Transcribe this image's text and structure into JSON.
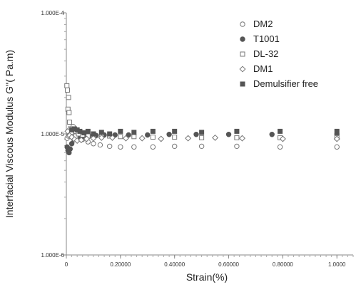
{
  "chart_data": {
    "type": "scatter",
    "xlabel": "Strain(%)",
    "ylabel": "Interfacial Viscous Modulus G''( Pa.m)",
    "xlim": [
      0,
      1.06
    ],
    "ylim": [
      1e-06,
      0.0001
    ],
    "yscale": "log",
    "x_ticks": [
      {
        "value": 0,
        "label": "0"
      },
      {
        "value": 0.2,
        "label": "0.20000"
      },
      {
        "value": 0.4,
        "label": "0.40000"
      },
      {
        "value": 0.6,
        "label": "0.60000"
      },
      {
        "value": 0.8,
        "label": "0.80000"
      },
      {
        "value": 1.0,
        "label": "1.0000"
      }
    ],
    "y_ticks": [
      {
        "value": 0.0001,
        "label": "1.000E-4"
      },
      {
        "value": 1e-05,
        "label": "1.000E-5"
      },
      {
        "value": 1e-06,
        "label": "1.000E-6"
      }
    ],
    "legend_position": "top-right",
    "series": [
      {
        "name": "DM2",
        "marker": "open-circle",
        "color": "#777777",
        "x": [
          0.003,
          0.008,
          0.013,
          0.018,
          0.025,
          0.033,
          0.045,
          0.06,
          0.08,
          0.1,
          0.125,
          0.16,
          0.2,
          0.25,
          0.32,
          0.4,
          0.5,
          0.63,
          0.79,
          1.0
        ],
        "y": [
          9.2e-06,
          9.6e-06,
          1e-05,
          1.05e-05,
          1.15e-05,
          1.05e-05,
          9.5e-06,
          9e-06,
          8.6e-06,
          8.3e-06,
          8.1e-06,
          7.9e-06,
          7.8e-06,
          7.8e-06,
          7.8e-06,
          7.9e-06,
          7.9e-06,
          7.9e-06,
          7.8e-06,
          7.8e-06
        ]
      },
      {
        "name": "T1001",
        "marker": "filled-circle",
        "color": "#555555",
        "x": [
          0.003,
          0.006,
          0.01,
          0.014,
          0.02,
          0.028,
          0.038,
          0.05,
          0.065,
          0.085,
          0.11,
          0.14,
          0.18,
          0.23,
          0.3,
          0.38,
          0.48,
          0.6,
          0.76,
          1.0
        ],
        "y": [
          7.8e-06,
          7.3e-06,
          7e-06,
          7.5e-06,
          8.3e-06,
          9e-06,
          9.2e-06,
          9.4e-06,
          9.5e-06,
          9.6e-06,
          9.7e-06,
          9.8e-06,
          9.8e-06,
          9.8e-06,
          9.8e-06,
          9.9e-06,
          9.9e-06,
          9.9e-06,
          9.9e-06,
          9.9e-06
        ]
      },
      {
        "name": "DL-32",
        "marker": "open-square",
        "color": "#777777",
        "x": [
          0.002,
          0.004,
          0.006,
          0.008,
          0.01,
          0.012,
          0.015,
          0.018,
          0.022,
          0.028,
          0.035,
          0.045,
          0.06,
          0.08,
          0.1,
          0.13,
          0.16,
          0.2,
          0.25,
          0.32,
          0.4,
          0.5,
          0.63,
          0.79,
          1.0
        ],
        "y": [
          2.5e-05,
          2.3e-05,
          1.6e-05,
          2e-05,
          1.5e-05,
          1.25e-05,
          1.1e-05,
          1e-05,
          9.5e-06,
          9.3e-06,
          9.6e-06,
          1e-05,
          9.8e-06,
          9.6e-06,
          9.5e-06,
          9.7e-06,
          9.6e-06,
          9.5e-06,
          9.5e-06,
          9.4e-06,
          9.4e-06,
          9.3e-06,
          9.3e-06,
          9.3e-06,
          9.3e-06
        ]
      },
      {
        "name": "DM1",
        "marker": "open-diamond",
        "color": "#777777",
        "x": [
          0.005,
          0.012,
          0.02,
          0.03,
          0.04,
          0.055,
          0.075,
          0.1,
          0.13,
          0.17,
          0.22,
          0.28,
          0.35,
          0.45,
          0.55,
          0.65,
          0.8,
          1.0
        ],
        "y": [
          1.05e-05,
          9.7e-06,
          9.4e-06,
          9e-06,
          8.8e-06,
          8.9e-06,
          9.1e-06,
          9.2e-06,
          9.3e-06,
          9.3e-06,
          9.2e-06,
          9.2e-06,
          9.1e-06,
          9.2e-06,
          9.3e-06,
          9.2e-06,
          9.1e-06,
          9.1e-06
        ]
      },
      {
        "name": "Demulsifier free",
        "marker": "filled-square",
        "color": "#555555",
        "x": [
          0.02,
          0.03,
          0.04,
          0.05,
          0.065,
          0.08,
          0.1,
          0.13,
          0.16,
          0.2,
          0.25,
          0.32,
          0.4,
          0.5,
          0.63,
          0.79,
          1.0
        ],
        "y": [
          1.08e-05,
          1.1e-05,
          1.08e-05,
          1.05e-05,
          1.02e-05,
          1.05e-05,
          1e-05,
          1.03e-05,
          1e-05,
          1.05e-05,
          1.03e-05,
          1.05e-05,
          1.05e-05,
          1.03e-05,
          1.05e-05,
          1.05e-05,
          1.05e-05
        ]
      }
    ]
  }
}
